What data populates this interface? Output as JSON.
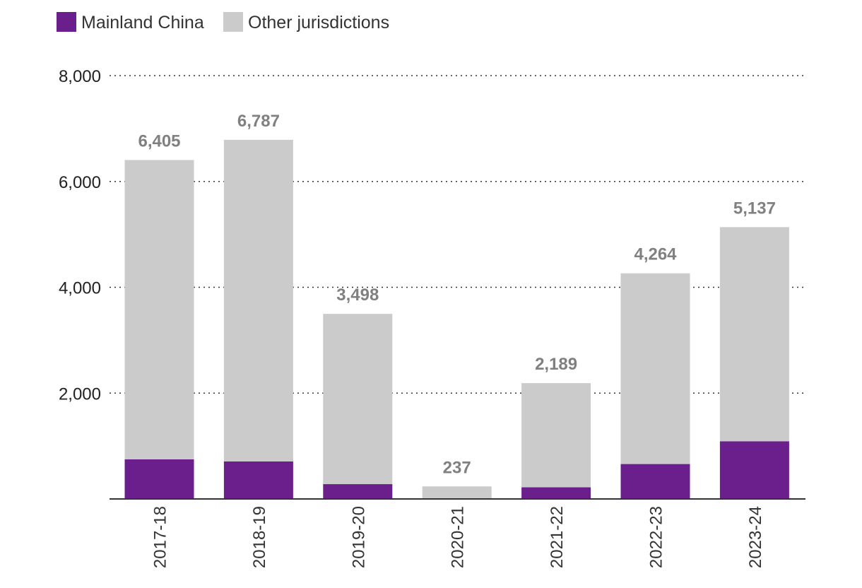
{
  "chart_data": {
    "type": "bar",
    "stacked": true,
    "categories": [
      "2017-18",
      "2018-19",
      "2019-20",
      "2020-21",
      "2021-22",
      "2022-23",
      "2023-24"
    ],
    "series": [
      {
        "name": "Mainland China",
        "color": "#6b1f8c",
        "values": [
          750,
          710,
          280,
          0,
          220,
          660,
          1090
        ]
      },
      {
        "name": "Other jurisdictions",
        "color": "#cbcbcb",
        "values": [
          5655,
          6077,
          3218,
          237,
          1969,
          3604,
          4047
        ]
      }
    ],
    "totals": [
      6405,
      6787,
      3498,
      237,
      2189,
      4264,
      5137
    ],
    "total_labels": [
      "6,405",
      "6,787",
      "3,498",
      "237",
      "2,189",
      "4,264",
      "5,137"
    ],
    "y_ticks": [
      2000,
      4000,
      6000,
      8000
    ],
    "y_tick_labels": [
      "2,000",
      "4,000",
      "6,000",
      "8,000"
    ],
    "ylim": [
      0,
      8000
    ],
    "grid": true,
    "legend_position": "top-left",
    "title": "",
    "xlabel": "",
    "ylabel": ""
  }
}
